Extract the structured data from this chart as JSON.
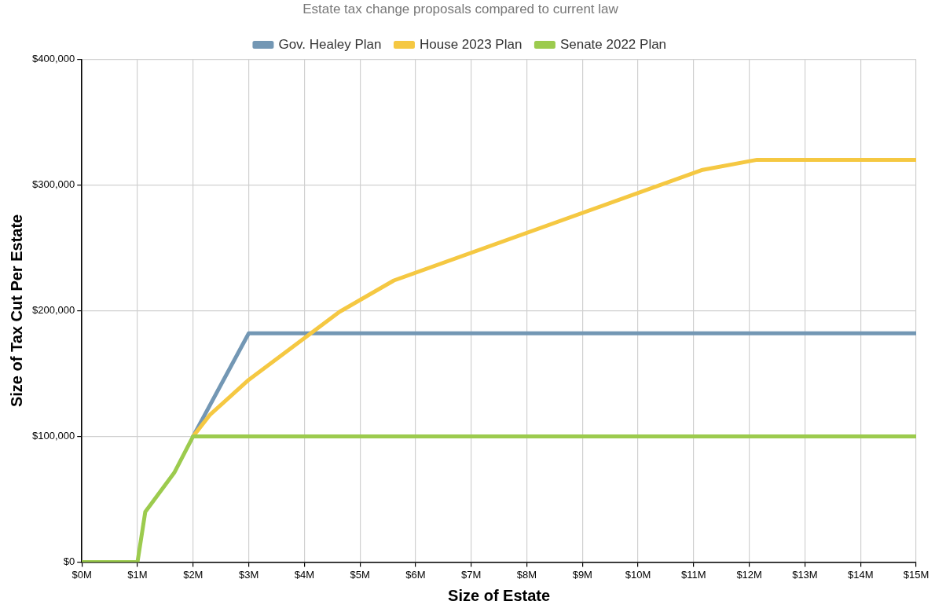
{
  "chart_data": {
    "type": "line",
    "title": "Estate tax change proposals compared to current law",
    "xlabel": "Size of Estate",
    "ylabel": "Size of Tax Cut Per Estate",
    "xlim": [
      0,
      15
    ],
    "xticks": [
      {
        "value": 0,
        "label": "$0M"
      },
      {
        "value": 1,
        "label": "$1M"
      },
      {
        "value": 2,
        "label": "$2M"
      },
      {
        "value": 3,
        "label": "$3M"
      },
      {
        "value": 4,
        "label": "$4M"
      },
      {
        "value": 5,
        "label": "$5M"
      },
      {
        "value": 6,
        "label": "$6M"
      },
      {
        "value": 7,
        "label": "$7M"
      },
      {
        "value": 8,
        "label": "$8M"
      },
      {
        "value": 9,
        "label": "$9M"
      },
      {
        "value": 10,
        "label": "$10M"
      },
      {
        "value": 11,
        "label": "$11M"
      },
      {
        "value": 12,
        "label": "$12M"
      },
      {
        "value": 13,
        "label": "$13M"
      },
      {
        "value": 14,
        "label": "$14M"
      },
      {
        "value": 15,
        "label": "$15M"
      }
    ],
    "ylim": [
      0,
      400000
    ],
    "yticks": [
      {
        "value": 0,
        "label": "$0"
      },
      {
        "value": 100000,
        "label": "$100,000"
      },
      {
        "value": 200000,
        "label": "$200,000"
      },
      {
        "value": 300000,
        "label": "$300,000"
      },
      {
        "value": 400000,
        "label": "$400,000"
      }
    ],
    "grid": true,
    "legend": "top",
    "marker": "none",
    "line_style": "solid",
    "series": [
      {
        "name": "Gov. Healey Plan",
        "color": "#7397b4",
        "x": [
          2.0,
          3.0,
          15
        ],
        "values": [
          100000,
          182000,
          182000
        ]
      },
      {
        "name": "House 2023 Plan",
        "color": "#f5c842",
        "x": [
          2.0,
          2.3,
          3.0,
          4.63,
          5.61,
          11.16,
          12.14,
          15
        ],
        "values": [
          100000,
          117000,
          145000,
          199000,
          224000,
          312000,
          320000,
          320000
        ]
      },
      {
        "name": "Senate 2022 Plan",
        "color": "#9ccb4e",
        "x": [
          0,
          1.0,
          1.14,
          1.66,
          2.0,
          15
        ],
        "values": [
          0,
          0,
          40000,
          71000,
          100000,
          100000
        ]
      }
    ]
  }
}
